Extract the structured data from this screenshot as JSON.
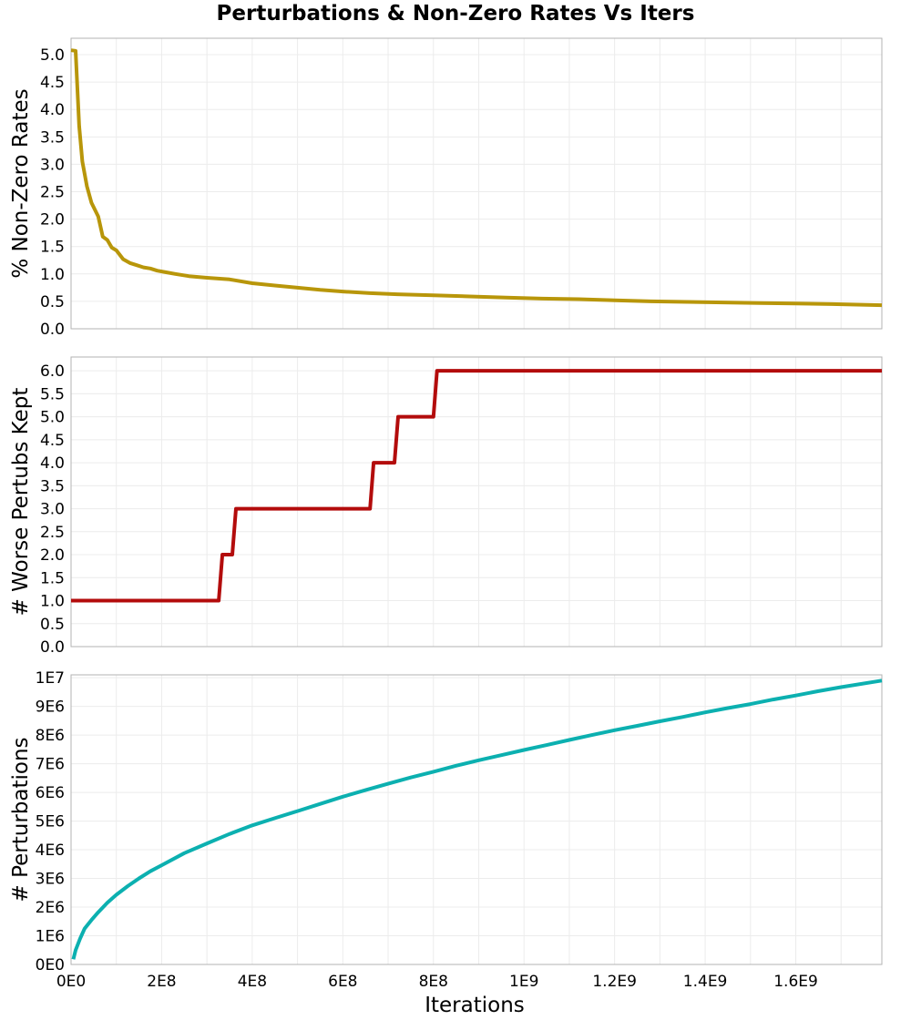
{
  "figure": {
    "title": "Perturbations & Non-Zero Rates Vs Iters"
  },
  "chart_data": [
    {
      "type": "line",
      "id": "nonzero",
      "title": "",
      "xlabel": "",
      "ylabel": "% Non-Zero Rates",
      "ylim": [
        0,
        5.3
      ],
      "xlim": [
        0,
        1790000000.0
      ],
      "yticks": [
        {
          "value": 0.0,
          "label": "0.0"
        },
        {
          "value": 0.5,
          "label": "0.5"
        },
        {
          "value": 1.0,
          "label": "1.0"
        },
        {
          "value": 1.5,
          "label": "1.5"
        },
        {
          "value": 2.0,
          "label": "2.0"
        },
        {
          "value": 2.5,
          "label": "2.5"
        },
        {
          "value": 3.0,
          "label": "3.0"
        },
        {
          "value": 3.5,
          "label": "3.5"
        },
        {
          "value": 4.0,
          "label": "4.0"
        },
        {
          "value": 4.5,
          "label": "4.5"
        },
        {
          "value": 5.0,
          "label": "5.0"
        }
      ],
      "grid": true,
      "series": [
        {
          "color": "#b8960a",
          "x": [
            0,
            10000000.0,
            18000000.0,
            25000000.0,
            35000000.0,
            45000000.0,
            60000000.0,
            70000000.0,
            80000000.0,
            90000000.0,
            100000000.0,
            115000000.0,
            130000000.0,
            145000000.0,
            160000000.0,
            175000000.0,
            190000000.0,
            210000000.0,
            230000000.0,
            260000000.0,
            300000000.0,
            350000000.0,
            400000000.0,
            450000000.0,
            500000000.0,
            550000000.0,
            600000000.0,
            660000000.0,
            720000000.0,
            800000000.0,
            880000000.0,
            960000000.0,
            1040000000.0,
            1120000000.0,
            1200000000.0,
            1280000000.0,
            1360000000.0,
            1440000000.0,
            1520000000.0,
            1600000000.0,
            1680000000.0,
            1790000000.0
          ],
          "y": [
            5.08,
            5.07,
            3.7,
            3.05,
            2.6,
            2.3,
            2.05,
            1.68,
            1.62,
            1.48,
            1.43,
            1.27,
            1.2,
            1.16,
            1.12,
            1.1,
            1.06,
            1.03,
            1.0,
            0.96,
            0.93,
            0.9,
            0.83,
            0.79,
            0.75,
            0.71,
            0.68,
            0.65,
            0.63,
            0.61,
            0.59,
            0.57,
            0.55,
            0.54,
            0.52,
            0.5,
            0.49,
            0.48,
            0.47,
            0.46,
            0.45,
            0.43
          ]
        }
      ]
    },
    {
      "type": "line",
      "id": "worse",
      "title": "",
      "xlabel": "",
      "ylabel": "# Worse Pertubs Kept",
      "ylim": [
        0,
        6.3
      ],
      "xlim": [
        0,
        1790000000.0
      ],
      "yticks": [
        {
          "value": 0.0,
          "label": "0.0"
        },
        {
          "value": 0.5,
          "label": "0.5"
        },
        {
          "value": 1.0,
          "label": "1.0"
        },
        {
          "value": 1.5,
          "label": "1.5"
        },
        {
          "value": 2.0,
          "label": "2.0"
        },
        {
          "value": 2.5,
          "label": "2.5"
        },
        {
          "value": 3.0,
          "label": "3.0"
        },
        {
          "value": 3.5,
          "label": "3.5"
        },
        {
          "value": 4.0,
          "label": "4.0"
        },
        {
          "value": 4.5,
          "label": "4.5"
        },
        {
          "value": 5.0,
          "label": "5.0"
        },
        {
          "value": 5.5,
          "label": "5.5"
        },
        {
          "value": 6.0,
          "label": "6.0"
        }
      ],
      "grid": true,
      "series": [
        {
          "color": "#b30c0c",
          "x": [
            0,
            326000000.0,
            334000000.0,
            356000000.0,
            364000000.0,
            660000000.0,
            668000000.0,
            714000000.0,
            722000000.0,
            800000000.0,
            808000000.0,
            1790000000.0
          ],
          "y": [
            1,
            1,
            2,
            2,
            3,
            3,
            4,
            4,
            5,
            5,
            6,
            6
          ]
        }
      ]
    },
    {
      "type": "line",
      "id": "perturbations",
      "title": "",
      "xlabel": "Iterations",
      "ylabel": "# Perturbations",
      "ylim": [
        0,
        10100000.0
      ],
      "xlim": [
        0,
        1790000000.0
      ],
      "yticks": [
        {
          "value": 0,
          "label": "0E0"
        },
        {
          "value": 1000000,
          "label": "1E6"
        },
        {
          "value": 2000000,
          "label": "2E6"
        },
        {
          "value": 3000000,
          "label": "3E6"
        },
        {
          "value": 4000000,
          "label": "4E6"
        },
        {
          "value": 5000000,
          "label": "5E6"
        },
        {
          "value": 6000000,
          "label": "6E6"
        },
        {
          "value": 7000000,
          "label": "7E6"
        },
        {
          "value": 8000000,
          "label": "8E6"
        },
        {
          "value": 9000000,
          "label": "9E6"
        },
        {
          "value": 10000000,
          "label": "1E7"
        }
      ],
      "xticks": [
        {
          "value": 0,
          "label": "0E0"
        },
        {
          "value": 200000000,
          "label": "2E8"
        },
        {
          "value": 400000000,
          "label": "4E8"
        },
        {
          "value": 600000000,
          "label": "6E8"
        },
        {
          "value": 800000000,
          "label": "8E8"
        },
        {
          "value": 1000000000,
          "label": "1E9"
        },
        {
          "value": 1200000000,
          "label": "1.2E9"
        },
        {
          "value": 1400000000,
          "label": "1.4E9"
        },
        {
          "value": 1600000000,
          "label": "1.6E9"
        }
      ],
      "grid": true,
      "series": [
        {
          "color": "#0cb0b0",
          "x": [
            5000000.0,
            10000000.0,
            20000000.0,
            30000000.0,
            45000000.0,
            60000000.0,
            80000000.0,
            100000000.0,
            125000000.0,
            150000000.0,
            175000000.0,
            200000000.0,
            250000000.0,
            300000000.0,
            350000000.0,
            400000000.0,
            450000000.0,
            500000000.0,
            550000000.0,
            600000000.0,
            650000000.0,
            700000000.0,
            750000000.0,
            800000000.0,
            850000000.0,
            900000000.0,
            950000000.0,
            1000000000.0,
            1050000000.0,
            1100000000.0,
            1150000000.0,
            1200000000.0,
            1250000000.0,
            1300000000.0,
            1350000000.0,
            1400000000.0,
            1450000000.0,
            1500000000.0,
            1550000000.0,
            1600000000.0,
            1650000000.0,
            1700000000.0,
            1790000000.0
          ],
          "y": [
            180000,
            500000,
            900000,
            1250000,
            1550000,
            1820000,
            2150000,
            2430000,
            2730000,
            3000000,
            3250000,
            3460000,
            3880000,
            4220000,
            4550000,
            4850000,
            5100000,
            5350000,
            5600000,
            5850000,
            6080000,
            6300000,
            6520000,
            6720000,
            6930000,
            7120000,
            7300000,
            7480000,
            7650000,
            7830000,
            8000000,
            8170000,
            8320000,
            8480000,
            8630000,
            8790000,
            8940000,
            9080000,
            9240000,
            9380000,
            9530000,
            9670000,
            9900000
          ]
        }
      ]
    }
  ]
}
